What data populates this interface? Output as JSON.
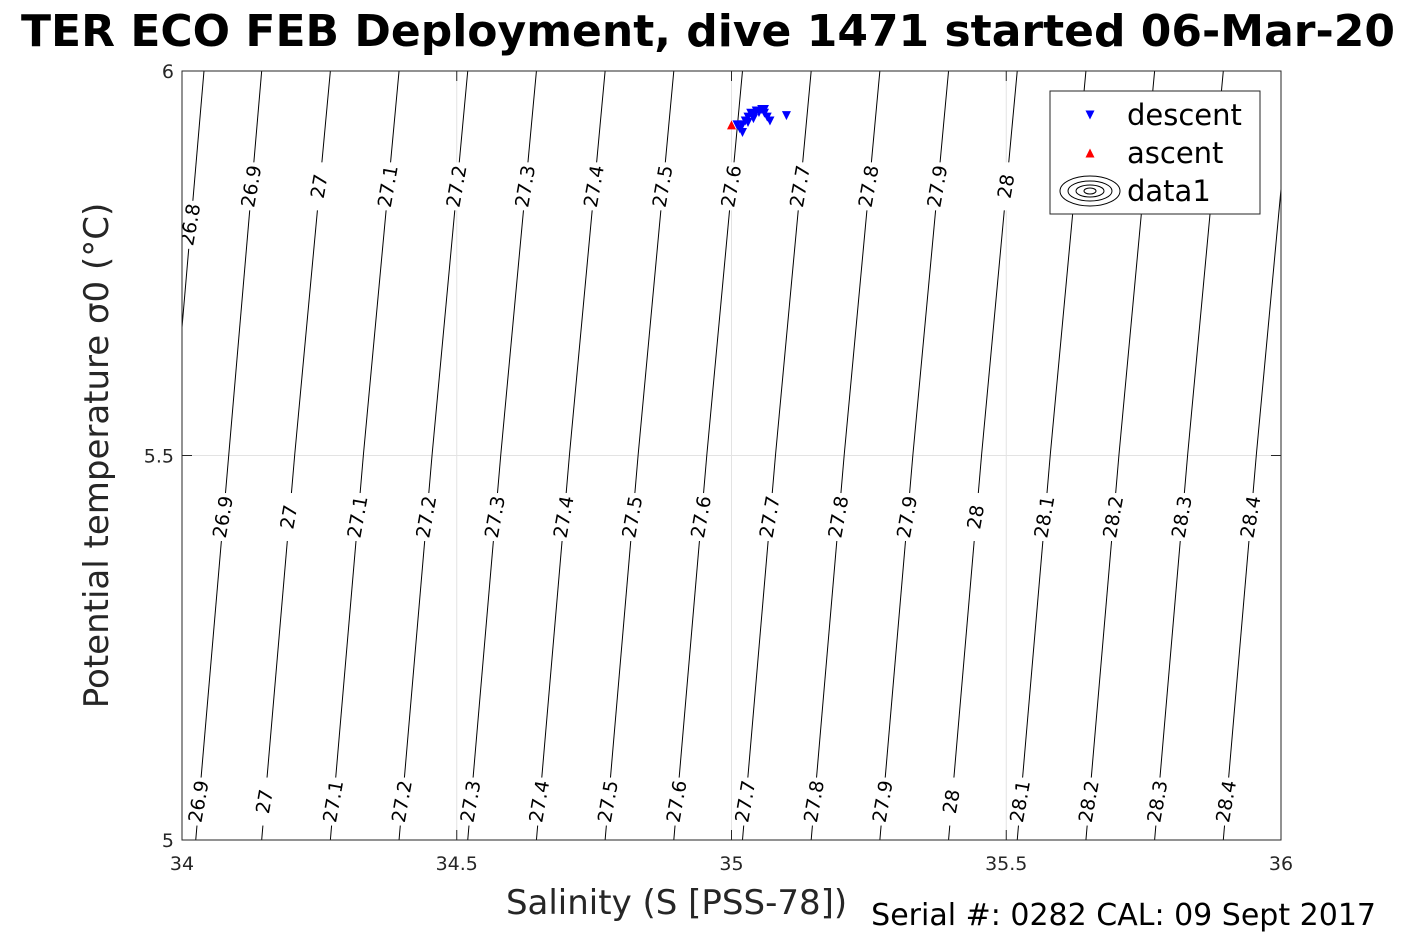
{
  "chart_data": {
    "type": "scatter",
    "title": "TER ECO FEB Deployment, dive 1471 started 06-Mar-20",
    "xlabel": "Salinity (S [PSS-78])",
    "ylabel": "Potential temperature σ0 (°C)",
    "xlim": [
      34,
      36
    ],
    "ylim": [
      5,
      6
    ],
    "x_ticks": [
      "34",
      "34.5",
      "35",
      "35.5",
      "36"
    ],
    "y_ticks": [
      "5",
      "5.5",
      "6"
    ],
    "grid": true,
    "legend_position": "top-right",
    "legend": [
      {
        "label": "descent",
        "marker": "triangle-down",
        "color": "#0000ff"
      },
      {
        "label": "ascent",
        "marker": "triangle-up",
        "color": "#ff0000"
      },
      {
        "label": "data1",
        "marker": "contour",
        "color": "#000000"
      }
    ],
    "series": [
      {
        "name": "descent",
        "color": "#0000ff",
        "marker": "triangle-down",
        "x": [
          35.01,
          35.015,
          35.02,
          35.025,
          35.03,
          35.035,
          35.04,
          35.045,
          35.05,
          35.055,
          35.06,
          35.065,
          35.02,
          35.03,
          35.04,
          35.05,
          35.06,
          35.07,
          35.1
        ],
        "y": [
          5.93,
          5.925,
          5.93,
          5.935,
          5.94,
          5.945,
          5.944,
          5.948,
          5.947,
          5.95,
          5.945,
          5.94,
          5.92,
          5.933,
          5.938,
          5.946,
          5.95,
          5.935,
          5.942
        ]
      },
      {
        "name": "ascent",
        "color": "#ff0000",
        "marker": "triangle-up",
        "x": [
          35.0
        ],
        "y": [
          5.93
        ]
      }
    ],
    "contours": {
      "name": "data1",
      "color": "#000000",
      "bands": [
        {
          "y_range": [
            5.5,
            6.0
          ],
          "levels": [
            {
              "label": "26.8",
              "x_top": 34.04,
              "x_bottom": 33.98,
              "label_y": 5.8
            },
            {
              "label": "26.9",
              "x_top": 34.145,
              "x_bottom": 34.085,
              "label_y": 5.85
            },
            {
              "label": "27",
              "x_top": 34.27,
              "x_bottom": 34.205,
              "label_y": 5.85
            },
            {
              "label": "27.1",
              "x_top": 34.395,
              "x_bottom": 34.33,
              "label_y": 5.85
            },
            {
              "label": "27.2",
              "x_top": 34.52,
              "x_bottom": 34.455,
              "label_y": 5.85
            },
            {
              "label": "27.3",
              "x_top": 34.645,
              "x_bottom": 34.58,
              "label_y": 5.85
            },
            {
              "label": "27.4",
              "x_top": 34.77,
              "x_bottom": 34.705,
              "label_y": 5.85
            },
            {
              "label": "27.5",
              "x_top": 34.895,
              "x_bottom": 34.83,
              "label_y": 5.85
            },
            {
              "label": "27.6",
              "x_top": 35.02,
              "x_bottom": 34.955,
              "label_y": 5.85
            },
            {
              "label": "27.7",
              "x_top": 35.145,
              "x_bottom": 35.08,
              "label_y": 5.85
            },
            {
              "label": "27.8",
              "x_top": 35.27,
              "x_bottom": 35.205,
              "label_y": 5.85
            },
            {
              "label": "27.9",
              "x_top": 35.395,
              "x_bottom": 35.33,
              "label_y": 5.85
            },
            {
              "label": "28",
              "x_top": 35.52,
              "x_bottom": 35.455,
              "label_y": 5.85
            },
            {
              "label": "",
              "x_top": 35.645,
              "x_bottom": 35.58,
              "label_y": 5.85
            },
            {
              "label": "",
              "x_top": 35.77,
              "x_bottom": 35.705,
              "label_y": 5.85
            },
            {
              "label": "",
              "x_top": 35.895,
              "x_bottom": 35.83,
              "label_y": 5.85
            },
            {
              "label": "",
              "x_top": 36.02,
              "x_bottom": 35.955,
              "label_y": 5.85
            }
          ]
        },
        {
          "y_range": [
            5.0,
            5.5
          ],
          "levels": [
            {
              "label": "26.9",
              "x_top": 34.085,
              "x_bottom": 34.025,
              "label_y": 5.05,
              "label_y2": 5.42
            },
            {
              "label": "27",
              "x_top": 34.205,
              "x_bottom": 34.145,
              "label_y": 5.05,
              "label_y2": 5.42
            },
            {
              "label": "27.1",
              "x_top": 34.33,
              "x_bottom": 34.27,
              "label_y": 5.05,
              "label_y2": 5.42
            },
            {
              "label": "27.2",
              "x_top": 34.455,
              "x_bottom": 34.395,
              "label_y": 5.05,
              "label_y2": 5.42
            },
            {
              "label": "27.3",
              "x_top": 34.58,
              "x_bottom": 34.52,
              "label_y": 5.05,
              "label_y2": 5.42
            },
            {
              "label": "27.4",
              "x_top": 34.705,
              "x_bottom": 34.645,
              "label_y": 5.05,
              "label_y2": 5.42
            },
            {
              "label": "27.5",
              "x_top": 34.83,
              "x_bottom": 34.77,
              "label_y": 5.05,
              "label_y2": 5.42
            },
            {
              "label": "27.6",
              "x_top": 34.955,
              "x_bottom": 34.895,
              "label_y": 5.05,
              "label_y2": 5.42
            },
            {
              "label": "27.7",
              "x_top": 35.08,
              "x_bottom": 35.02,
              "label_y": 5.05,
              "label_y2": 5.42
            },
            {
              "label": "27.8",
              "x_top": 35.205,
              "x_bottom": 35.145,
              "label_y": 5.05,
              "label_y2": 5.42
            },
            {
              "label": "27.9",
              "x_top": 35.33,
              "x_bottom": 35.27,
              "label_y": 5.05,
              "label_y2": 5.42
            },
            {
              "label": "28",
              "x_top": 35.455,
              "x_bottom": 35.395,
              "label_y": 5.05,
              "label_y2": 5.42
            },
            {
              "label": "28.1",
              "x_top": 35.58,
              "x_bottom": 35.52,
              "label_y": 5.05,
              "label_y2": 5.42
            },
            {
              "label": "28.2",
              "x_top": 35.705,
              "x_bottom": 35.645,
              "label_y": 5.05,
              "label_y2": 5.42
            },
            {
              "label": "28.3",
              "x_top": 35.83,
              "x_bottom": 35.77,
              "label_y": 5.05,
              "label_y2": 5.42
            },
            {
              "label": "28.4",
              "x_top": 35.955,
              "x_bottom": 35.895,
              "label_y": 5.05,
              "label_y2": 5.42
            },
            {
              "label": "",
              "x_top": 36.02,
              "x_bottom": 36.02,
              "label_y": 5.05,
              "label_y2": 5.42
            }
          ]
        }
      ]
    }
  },
  "footer": "Serial #: 0282  CAL: 09 Sept 2017"
}
